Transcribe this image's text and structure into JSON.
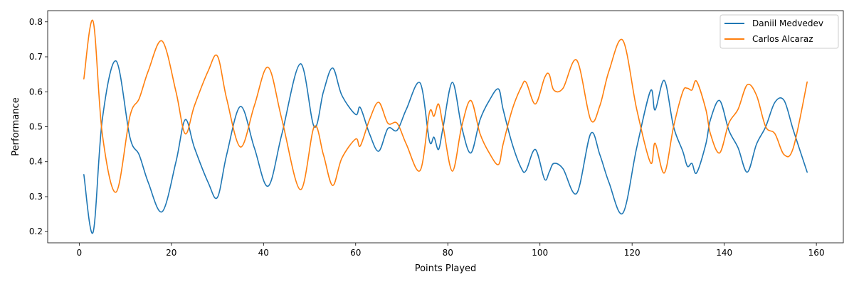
{
  "chart_data": {
    "type": "line",
    "xlabel": "Points Played",
    "ylabel": "Performance",
    "xlim": [
      -6.85,
      165.85
    ],
    "ylim": [
      0.168,
      0.832
    ],
    "xticks": [
      0,
      20,
      40,
      60,
      80,
      100,
      120,
      140,
      160
    ],
    "yticks": [
      0.2,
      0.3,
      0.4,
      0.5,
      0.6,
      0.7,
      0.8
    ],
    "grid": false,
    "legend_position": "top-right",
    "x": [
      1,
      3,
      5,
      8,
      11,
      13,
      15,
      18,
      21,
      23,
      25,
      28,
      30,
      32,
      35,
      38,
      41,
      44,
      48,
      51,
      53,
      55,
      57,
      60,
      61,
      63,
      65,
      67,
      69,
      71,
      74,
      76,
      77,
      78,
      79,
      81,
      83,
      85,
      87,
      89,
      91,
      92,
      94,
      96,
      97,
      99,
      101,
      102,
      103,
      105,
      108,
      111,
      113,
      115,
      118,
      121,
      124,
      125,
      127,
      129,
      131,
      132,
      133,
      134,
      136,
      137,
      139,
      141,
      143,
      145,
      147,
      149,
      151,
      153,
      155,
      158
    ],
    "series": [
      {
        "name": "Daniil Medvedev",
        "color": "#1f77b4",
        "values": [
          0.363,
          0.198,
          0.52,
          0.688,
          0.47,
          0.42,
          0.34,
          0.257,
          0.4,
          0.52,
          0.44,
          0.34,
          0.298,
          0.42,
          0.558,
          0.44,
          0.33,
          0.48,
          0.68,
          0.5,
          0.6,
          0.668,
          0.59,
          0.535,
          0.555,
          0.48,
          0.43,
          0.495,
          0.49,
          0.55,
          0.625,
          0.46,
          0.47,
          0.435,
          0.5,
          0.627,
          0.5,
          0.425,
          0.52,
          0.575,
          0.608,
          0.55,
          0.45,
          0.38,
          0.375,
          0.435,
          0.35,
          0.37,
          0.395,
          0.38,
          0.31,
          0.48,
          0.42,
          0.34,
          0.253,
          0.44,
          0.603,
          0.548,
          0.632,
          0.5,
          0.43,
          0.387,
          0.395,
          0.368,
          0.45,
          0.52,
          0.575,
          0.49,
          0.44,
          0.37,
          0.45,
          0.5,
          0.57,
          0.575,
          0.49,
          0.37
        ]
      },
      {
        "name": "Carlos Alcaraz",
        "color": "#ff7f0e",
        "values": [
          0.637,
          0.802,
          0.48,
          0.313,
          0.53,
          0.58,
          0.66,
          0.745,
          0.6,
          0.48,
          0.56,
          0.66,
          0.702,
          0.58,
          0.442,
          0.56,
          0.67,
          0.52,
          0.32,
          0.5,
          0.42,
          0.332,
          0.41,
          0.465,
          0.445,
          0.52,
          0.57,
          0.51,
          0.51,
          0.45,
          0.375,
          0.54,
          0.53,
          0.565,
          0.5,
          0.373,
          0.5,
          0.575,
          0.48,
          0.425,
          0.392,
          0.45,
          0.55,
          0.615,
          0.627,
          0.565,
          0.64,
          0.65,
          0.605,
          0.61,
          0.69,
          0.52,
          0.56,
          0.66,
          0.747,
          0.55,
          0.397,
          0.453,
          0.368,
          0.5,
          0.6,
          0.61,
          0.605,
          0.63,
          0.55,
          0.48,
          0.425,
          0.51,
          0.55,
          0.62,
          0.59,
          0.5,
          0.48,
          0.42,
          0.44,
          0.628
        ]
      }
    ]
  }
}
